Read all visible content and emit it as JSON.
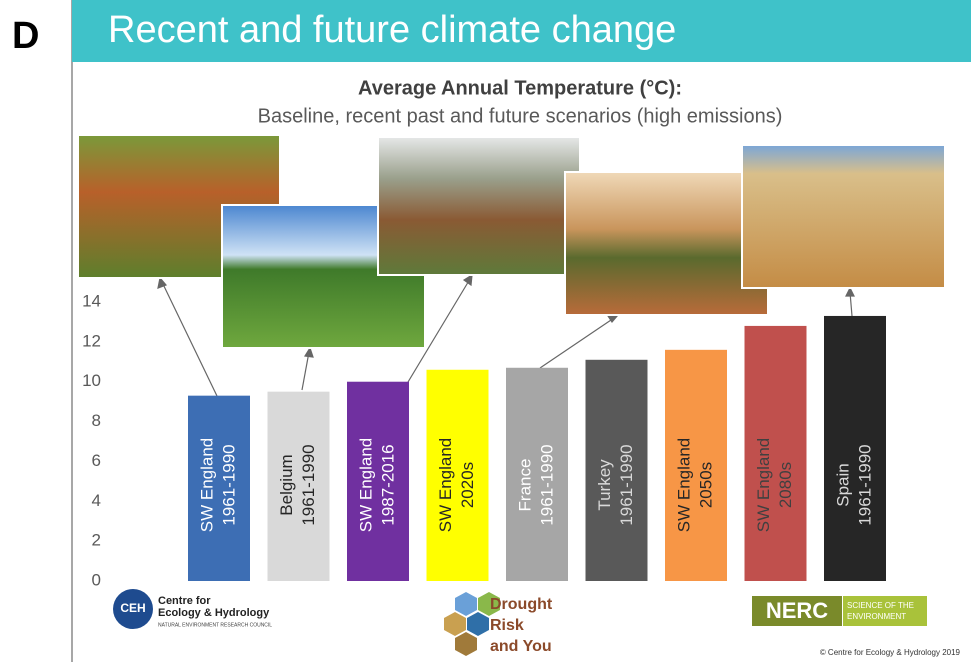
{
  "page": {
    "panel_letter": "D",
    "heading": "Recent and future climate change",
    "ceh_logo": {
      "mark": "CEH",
      "line1": "Centre for",
      "line2": "Ecology & Hydrology",
      "line3": "NATURAL ENVIRONMENT RESEARCH COUNCIL"
    },
    "dry_logo": {
      "line1": "Drought",
      "line2": "Risk",
      "line3": "and You"
    },
    "nerc_logo": {
      "mark": "NERC",
      "line1": "SCIENCE OF THE",
      "line2": "ENVIRONMENT"
    },
    "copyright": "© Centre for Ecology & Hydrology 2019"
  },
  "chart_data": {
    "type": "bar",
    "title": "Average Annual Temperature (°C):",
    "subtitle": "Baseline, recent past and future scenarios (high emissions)",
    "categories": [
      [
        "SW England",
        "1961-1990"
      ],
      [
        "Belgium",
        "1961-1990"
      ],
      [
        "SW England",
        "1987-2016"
      ],
      [
        "SW England",
        "2020s"
      ],
      [
        "France",
        "1961-1990"
      ],
      [
        "Turkey",
        "1961-1990"
      ],
      [
        "SW England",
        "2050s"
      ],
      [
        "SW England",
        "2080s"
      ],
      [
        "Spain",
        "1961-1990"
      ]
    ],
    "values": [
      9.3,
      9.5,
      10.0,
      10.6,
      10.7,
      11.1,
      11.6,
      12.8,
      13.3
    ],
    "colors": [
      "#3d6eb4",
      "#d9d9d9",
      "#7030a0",
      "#ffff00",
      "#a6a6a6",
      "#595959",
      "#f79646",
      "#c0504d",
      "#262626"
    ],
    "label_colors": [
      "#ffffff",
      "#262626",
      "#ffffff",
      "#262626",
      "#ffffff",
      "#d9d9d9",
      "#262626",
      "#404040",
      "#d9d9d9"
    ],
    "ylim": [
      0,
      14
    ],
    "yticks": [
      0,
      2,
      4,
      6,
      8,
      10,
      12,
      14
    ],
    "grid": false
  }
}
